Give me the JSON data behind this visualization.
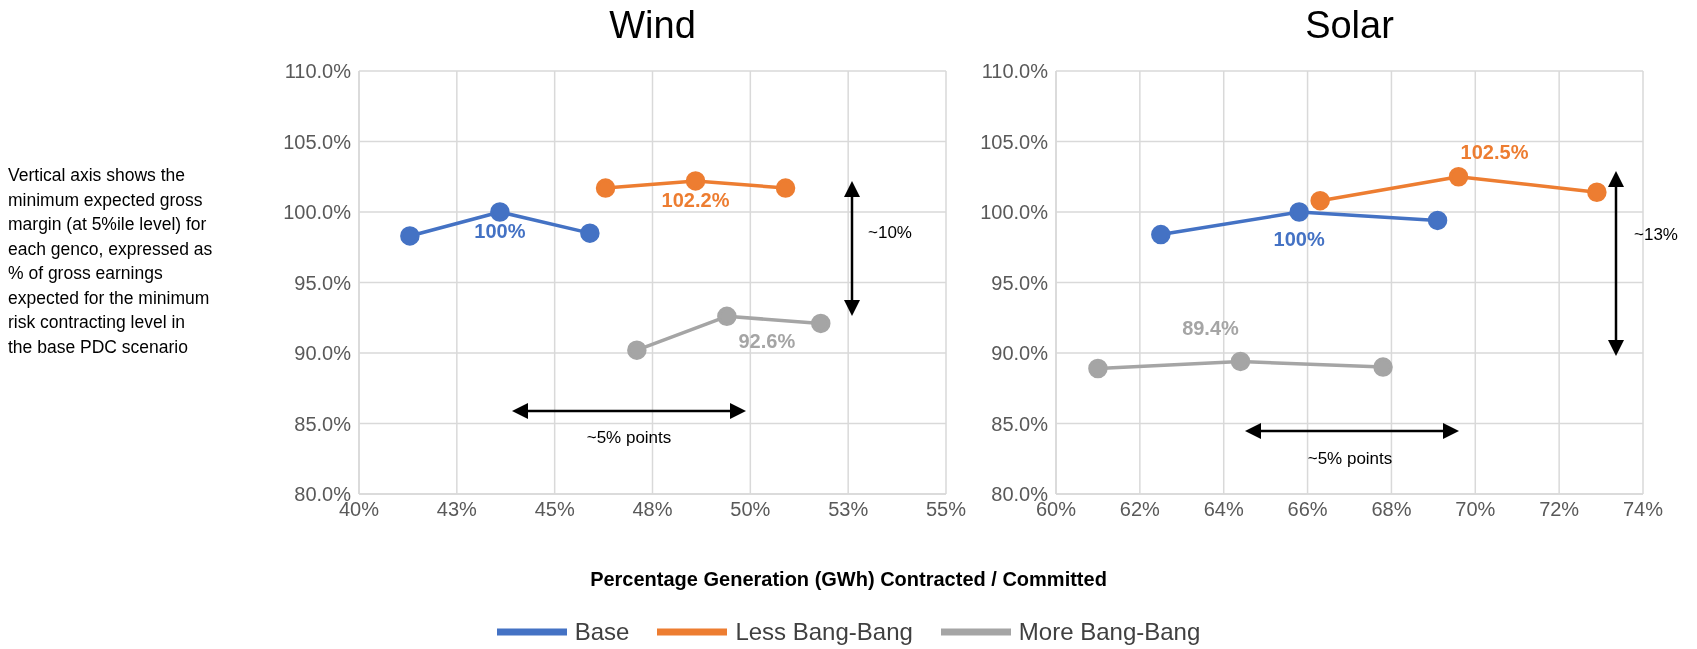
{
  "chart_data": [
    {
      "type": "line",
      "title": "Wind",
      "xlabel": "Percentage Generation (GWh) Contracted / Committed",
      "annotations": [
        "Vertical axis shows the minimum expected gross margin (at 5%ile level) for each genco, expressed as % of gross earnings expected for the minimum risk contracting level in the base PDC scenario",
        "~5% points",
        "~10%"
      ],
      "xlim": [
        40,
        55
      ],
      "xticks": [
        {
          "value": 40,
          "label": "40%"
        },
        {
          "value": 42.5,
          "label": "43%"
        },
        {
          "value": 45,
          "label": "45%"
        },
        {
          "value": 47.5,
          "label": "48%"
        },
        {
          "value": 50,
          "label": "50%"
        },
        {
          "value": 52.5,
          "label": "53%"
        },
        {
          "value": 55,
          "label": "55%"
        }
      ],
      "ylim": [
        80,
        110
      ],
      "yticks": [
        {
          "value": 80,
          "label": "80.0%"
        },
        {
          "value": 85,
          "label": "85.0%"
        },
        {
          "value": 90,
          "label": "90.0%"
        },
        {
          "value": 95,
          "label": "95.0%"
        },
        {
          "value": 100,
          "label": "100.0%"
        },
        {
          "value": 105,
          "label": "105.0%"
        },
        {
          "value": 110,
          "label": "110.0%"
        }
      ],
      "grid": true,
      "marker": "circle",
      "line_style": "solid",
      "legend": "bottom",
      "series": [
        {
          "name": "Base",
          "color": "#4472c4",
          "x": [
            41.3,
            43.6,
            45.9
          ],
          "values": [
            98.3,
            100,
            98.5
          ],
          "value_labels": [
            null,
            "100%",
            null
          ]
        },
        {
          "name": "Less Bang-Bang",
          "color": "#ed7d31",
          "x": [
            46.3,
            48.6,
            50.9
          ],
          "values": [
            101.7,
            102.2,
            101.7
          ],
          "value_labels": [
            null,
            "102.2%",
            null
          ]
        },
        {
          "name": "More Bang-Bang",
          "color": "#a5a5a5",
          "x": [
            47.1,
            49.4,
            51.8
          ],
          "values": [
            90.2,
            92.6,
            92.1
          ],
          "value_labels": [
            null,
            "92.6%",
            null
          ]
        }
      ]
    },
    {
      "type": "line",
      "title": "Solar",
      "annotations": [
        "~5% points",
        "~13%"
      ],
      "xlim": [
        60,
        74
      ],
      "xticks": [
        {
          "value": 60,
          "label": "60%"
        },
        {
          "value": 62,
          "label": "62%"
        },
        {
          "value": 64,
          "label": "64%"
        },
        {
          "value": 66,
          "label": "66%"
        },
        {
          "value": 68,
          "label": "68%"
        },
        {
          "value": 70,
          "label": "70%"
        },
        {
          "value": 72,
          "label": "72%"
        },
        {
          "value": 74,
          "label": "74%"
        }
      ],
      "ylim": [
        80,
        110
      ],
      "yticks": [
        {
          "value": 80,
          "label": "80.0%"
        },
        {
          "value": 85,
          "label": "85.0%"
        },
        {
          "value": 90,
          "label": "90.0%"
        },
        {
          "value": 95,
          "label": "95.0%"
        },
        {
          "value": 100,
          "label": "100.0%"
        },
        {
          "value": 105,
          "label": "105.0%"
        },
        {
          "value": 110,
          "label": "110.0%"
        }
      ],
      "grid": true,
      "marker": "circle",
      "line_style": "solid",
      "series": [
        {
          "color": "#4472c4",
          "x": [
            62.5,
            65.8,
            69.1
          ],
          "values": [
            98.4,
            100,
            99.4
          ],
          "value_labels": [
            null,
            "100%",
            null
          ]
        },
        {
          "color": "#ed7d31",
          "x": [
            66.3,
            69.6,
            72.9
          ],
          "values": [
            100.8,
            102.5,
            101.4
          ],
          "value_labels": [
            null,
            "102.5%",
            null
          ]
        },
        {
          "color": "#a5a5a5",
          "x": [
            61.0,
            64.4,
            67.8
          ],
          "values": [
            88.9,
            89.4,
            89.0
          ],
          "value_labels": [
            null,
            "89.4%",
            null
          ]
        }
      ]
    }
  ]
}
